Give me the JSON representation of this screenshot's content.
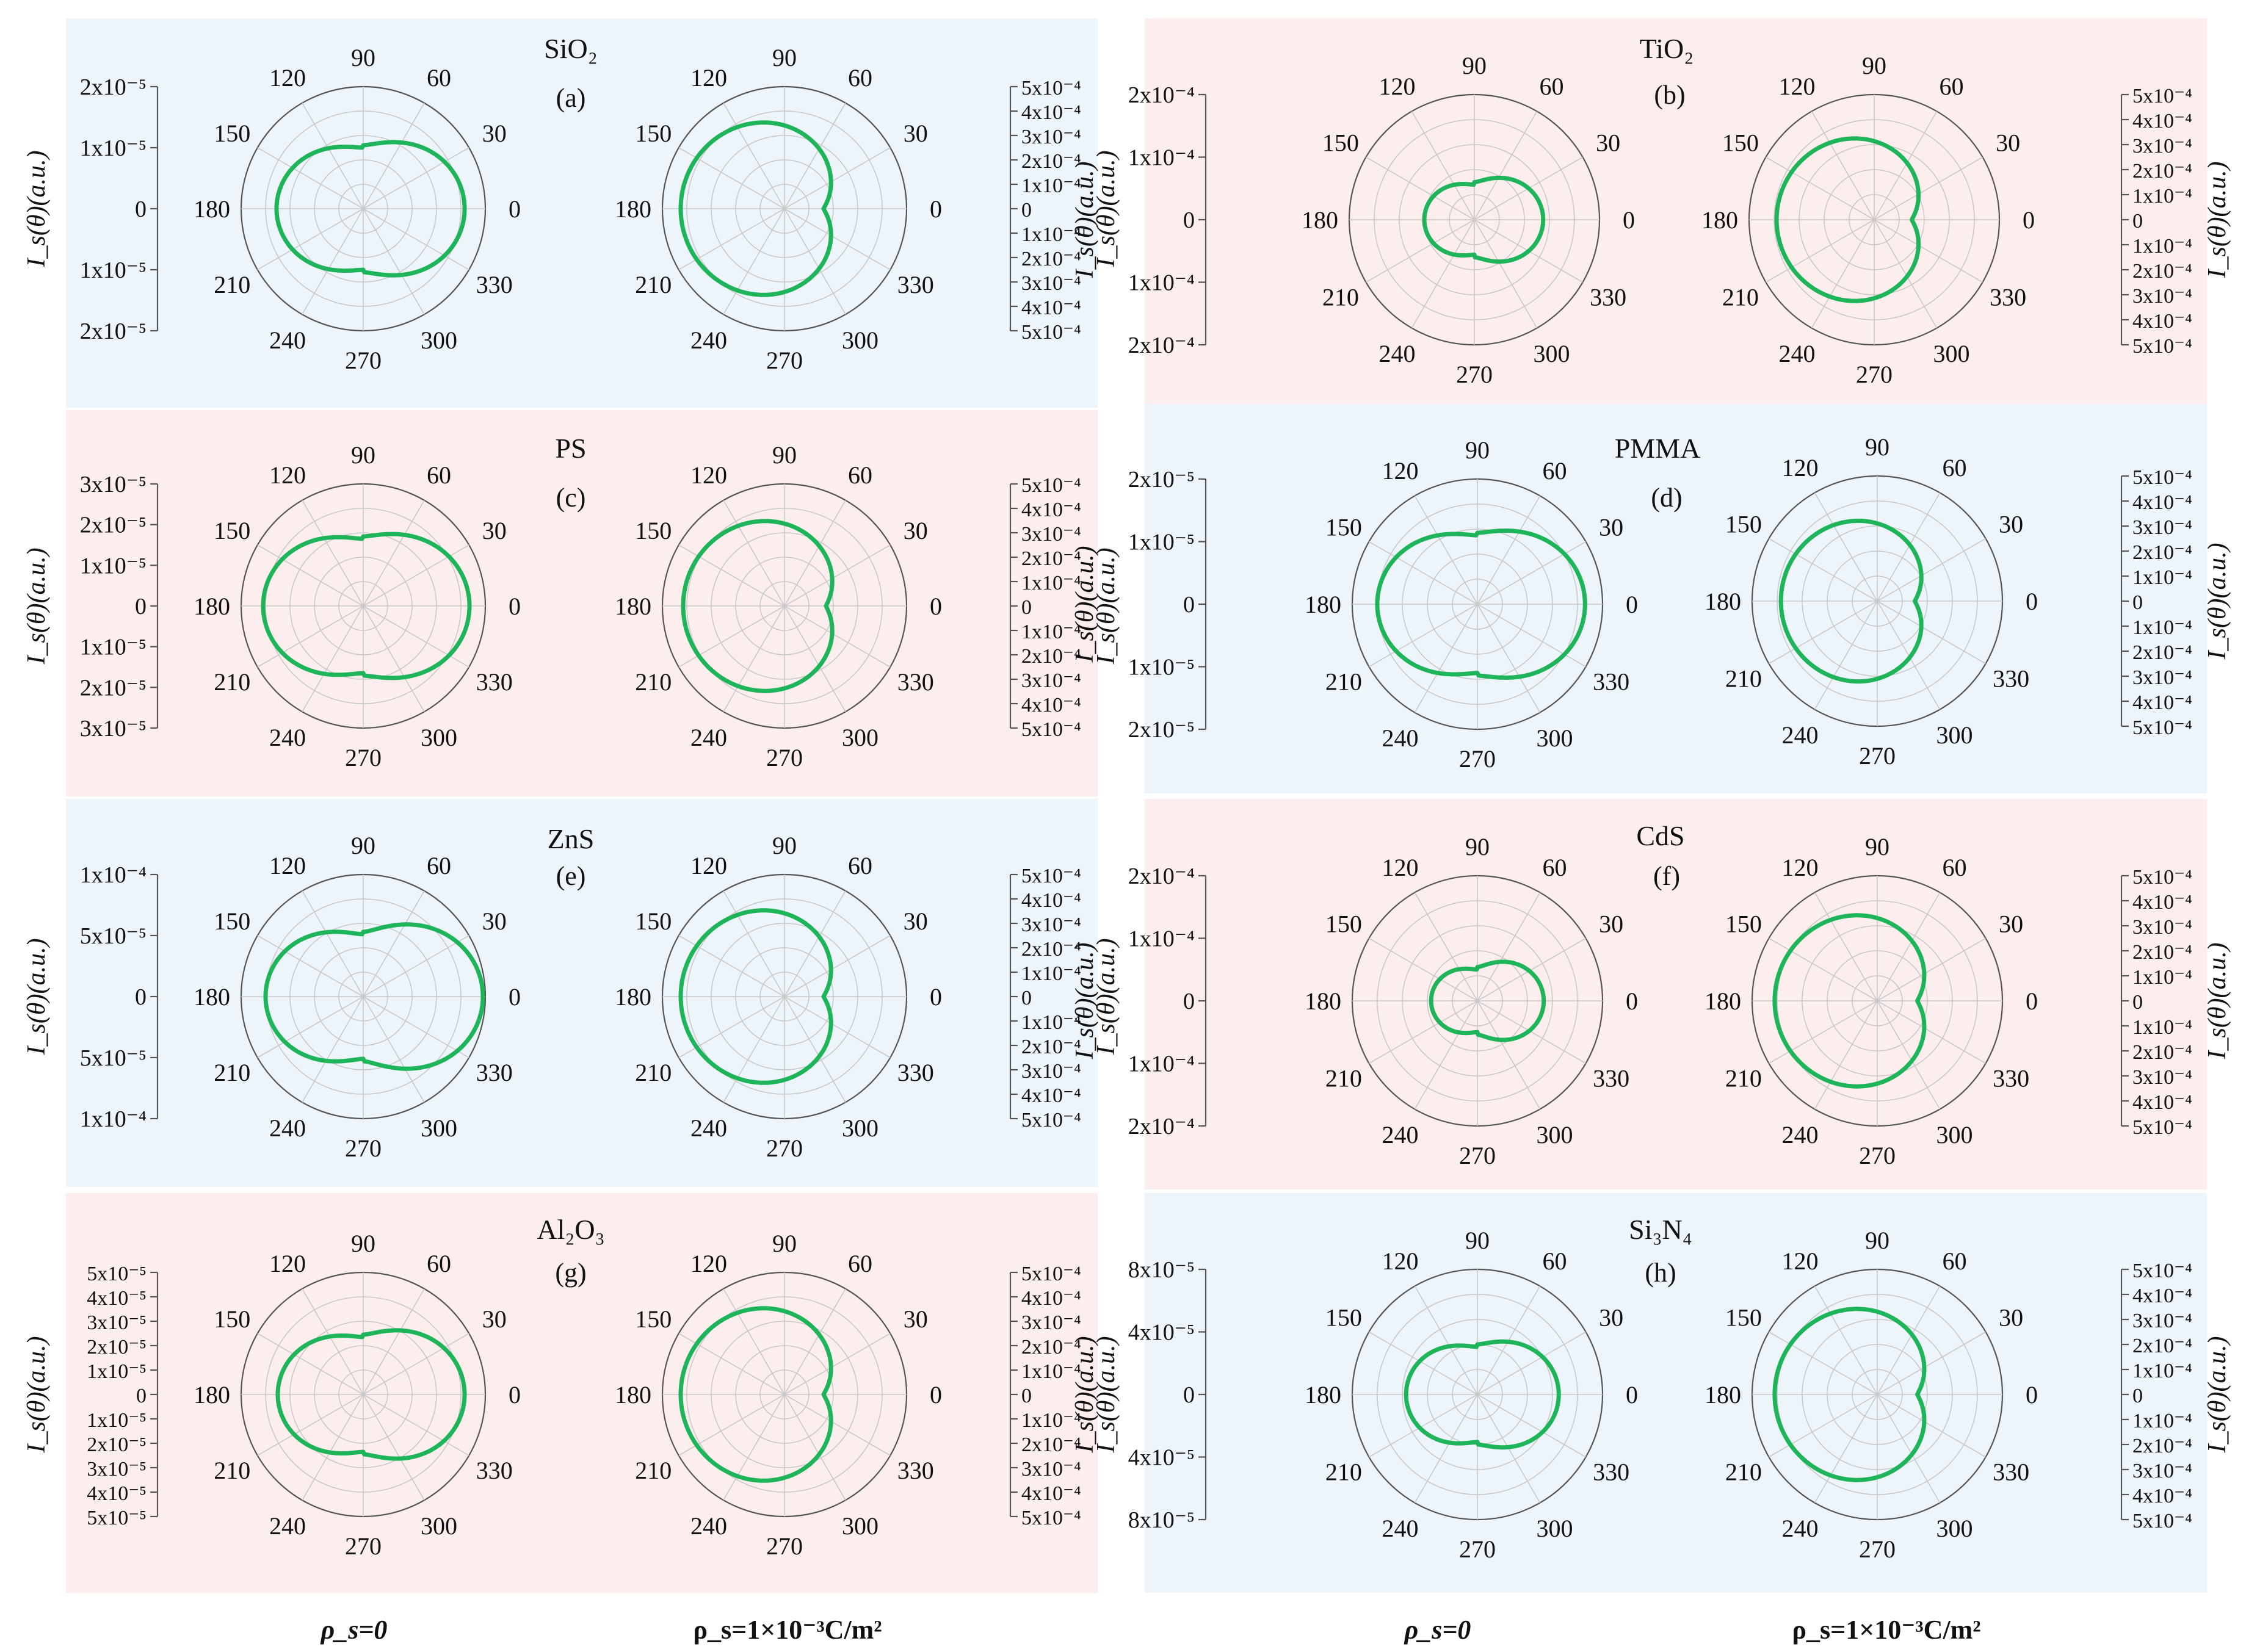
{
  "figure": {
    "column_labels": [
      "ρ_s=0",
      "ρ_s=1×10⁻³C/m²"
    ],
    "axis_label": "I_s(θ)(a.u.)"
  },
  "chart_data": [
    {
      "type": "polar",
      "panel": "(a)",
      "material": "SiO₂",
      "background": "#eef5fa",
      "angle_ticks_deg": [
        0,
        30,
        60,
        90,
        120,
        150,
        180,
        210,
        240,
        270,
        300,
        330
      ],
      "left_plot": {
        "surface_charge": "ρ_s=0",
        "radial_max": 2e-05,
        "axis_tick_labels": [
          "2x10⁻⁵",
          "1x10⁻⁵",
          "0",
          "1x10⁻⁵",
          "2x10⁻⁵"
        ],
        "shape": "dumbbell",
        "forward_radius_frac": 0.83,
        "backward_radius_frac": 0.71,
        "waist_frac": 0.47
      },
      "right_plot": {
        "surface_charge": "ρ_s=1×10⁻³C/m²",
        "radial_max": 0.0005,
        "axis_tick_labels": [
          "5x10⁻⁴",
          "4x10⁻⁴",
          "3x10⁻⁴",
          "2x10⁻⁴",
          "1x10⁻⁴",
          "0",
          "1x10⁻⁴",
          "2x10⁻⁴",
          "3x10⁻⁴",
          "4x10⁻⁴",
          "5x10⁻⁴"
        ],
        "shape": "backward",
        "forward_radius_frac": 0.32,
        "backward_radius_frac": 0.85
      }
    },
    {
      "type": "polar",
      "panel": "(b)",
      "material": "TiO₂",
      "background": "#fdeeee",
      "angle_ticks_deg": [
        0,
        30,
        60,
        90,
        120,
        150,
        180,
        210,
        240,
        270,
        300,
        330
      ],
      "left_plot": {
        "surface_charge": "ρ_s=0",
        "radial_max": 0.0002,
        "axis_tick_labels": [
          "2x10⁻⁴",
          "1x10⁻⁴",
          "0",
          "1x10⁻⁴",
          "2x10⁻⁴"
        ],
        "shape": "dumbbell",
        "forward_radius_frac": 0.55,
        "backward_radius_frac": 0.4,
        "waist_frac": 0.25
      },
      "right_plot": {
        "surface_charge": "ρ_s=1×10⁻³C/m²",
        "radial_max": 0.0005,
        "axis_tick_labels": [
          "5x10⁻⁴",
          "4x10⁻⁴",
          "3x10⁻⁴",
          "2x10⁻⁴",
          "1x10⁻⁴",
          "0",
          "1x10⁻⁴",
          "2x10⁻⁴",
          "3x10⁻⁴",
          "4x10⁻⁴",
          "5x10⁻⁴"
        ],
        "shape": "backward",
        "forward_radius_frac": 0.3,
        "backward_radius_frac": 0.78
      }
    },
    {
      "type": "polar",
      "panel": "(c)",
      "material": "PS",
      "background": "#fdeeee",
      "angle_ticks_deg": [
        0,
        30,
        60,
        90,
        120,
        150,
        180,
        210,
        240,
        270,
        300,
        330
      ],
      "left_plot": {
        "surface_charge": "ρ_s=0",
        "radial_max": 3e-05,
        "axis_tick_labels": [
          "3x10⁻⁵",
          "2x10⁻⁵",
          "1x10⁻⁵",
          "0",
          "1x10⁻⁵",
          "2x10⁻⁵",
          "3x10⁻⁵"
        ],
        "shape": "dumbbell",
        "forward_radius_frac": 0.87,
        "backward_radius_frac": 0.82,
        "waist_frac": 0.52
      },
      "right_plot": {
        "surface_charge": "ρ_s=1×10⁻³C/m²",
        "radial_max": 0.0005,
        "axis_tick_labels": [
          "5x10⁻⁴",
          "4x10⁻⁴",
          "3x10⁻⁴",
          "2x10⁻⁴",
          "1x10⁻⁴",
          "0",
          "1x10⁻⁴",
          "2x10⁻⁴",
          "3x10⁻⁴",
          "4x10⁻⁴",
          "5x10⁻⁴"
        ],
        "shape": "backward",
        "forward_radius_frac": 0.34,
        "backward_radius_frac": 0.83
      }
    },
    {
      "type": "polar",
      "panel": "(d)",
      "material": "PMMA",
      "background": "#eef5fa",
      "angle_ticks_deg": [
        0,
        30,
        60,
        90,
        120,
        150,
        180,
        210,
        240,
        270,
        300,
        330
      ],
      "left_plot": {
        "surface_charge": "ρ_s=0",
        "radial_max": 2e-05,
        "axis_tick_labels": [
          "2x10⁻⁵",
          "1x10⁻⁵",
          "0",
          "1x10⁻⁵",
          "2x10⁻⁵"
        ],
        "shape": "dumbbell",
        "forward_radius_frac": 0.86,
        "backward_radius_frac": 0.8,
        "waist_frac": 0.52
      },
      "right_plot": {
        "surface_charge": "ρ_s=1×10⁻³C/m²",
        "radial_max": 0.0005,
        "axis_tick_labels": [
          "5x10⁻⁴",
          "4x10⁻⁴",
          "3x10⁻⁴",
          "2x10⁻⁴",
          "1x10⁻⁴",
          "0",
          "1x10⁻⁴",
          "2x10⁻⁴",
          "3x10⁻⁴",
          "4x10⁻⁴",
          "5x10⁻⁴"
        ],
        "shape": "backward",
        "forward_radius_frac": 0.3,
        "backward_radius_frac": 0.77
      }
    },
    {
      "type": "polar",
      "panel": "(e)",
      "material": "ZnS",
      "background": "#eef5fa",
      "angle_ticks_deg": [
        0,
        30,
        60,
        90,
        120,
        150,
        180,
        210,
        240,
        270,
        300,
        330
      ],
      "left_plot": {
        "surface_charge": "ρ_s=0",
        "radial_max": 0.0001,
        "axis_tick_labels": [
          "1x10⁻⁴",
          "5x10⁻⁵",
          "0",
          "5x10⁻⁵",
          "1x10⁻⁴"
        ],
        "shape": "dumbbell",
        "forward_radius_frac": 0.98,
        "backward_radius_frac": 0.8,
        "waist_frac": 0.48
      },
      "right_plot": {
        "surface_charge": "ρ_s=1×10⁻³C/m²",
        "radial_max": 0.0005,
        "axis_tick_labels": [
          "5x10⁻⁴",
          "4x10⁻⁴",
          "3x10⁻⁴",
          "2x10⁻⁴",
          "1x10⁻⁴",
          "0",
          "1x10⁻⁴",
          "2x10⁻⁴",
          "3x10⁻⁴",
          "4x10⁻⁴",
          "5x10⁻⁴"
        ],
        "shape": "backward",
        "forward_radius_frac": 0.32,
        "backward_radius_frac": 0.85
      }
    },
    {
      "type": "polar",
      "panel": "(f)",
      "material": "CdS",
      "background": "#fdeeee",
      "angle_ticks_deg": [
        0,
        30,
        60,
        90,
        120,
        150,
        180,
        210,
        240,
        270,
        300,
        330
      ],
      "left_plot": {
        "surface_charge": "ρ_s=0",
        "radial_max": 0.0002,
        "axis_tick_labels": [
          "2x10⁻⁴",
          "1x10⁻⁴",
          "0",
          "1x10⁻⁴",
          "2x10⁻⁴"
        ],
        "shape": "dumbbell",
        "forward_radius_frac": 0.53,
        "backward_radius_frac": 0.37,
        "waist_frac": 0.22
      },
      "right_plot": {
        "surface_charge": "ρ_s=1×10⁻³C/m²",
        "radial_max": 0.0005,
        "axis_tick_labels": [
          "5x10⁻⁴",
          "4x10⁻⁴",
          "3x10⁻⁴",
          "2x10⁻⁴",
          "1x10⁻⁴",
          "0",
          "1x10⁻⁴",
          "2x10⁻⁴",
          "3x10⁻⁴",
          "4x10⁻⁴",
          "5x10⁻⁴"
        ],
        "shape": "backward",
        "forward_radius_frac": 0.32,
        "backward_radius_frac": 0.82
      }
    },
    {
      "type": "polar",
      "panel": "(g)",
      "material": "Al₂O₃",
      "background": "#fdeeee",
      "angle_ticks_deg": [
        0,
        30,
        60,
        90,
        120,
        150,
        180,
        210,
        240,
        270,
        300,
        330
      ],
      "left_plot": {
        "surface_charge": "ρ_s=0",
        "radial_max": 5e-05,
        "axis_tick_labels": [
          "5x10⁻⁵",
          "4x10⁻⁵",
          "3x10⁻⁵",
          "2x10⁻⁵",
          "1x10⁻⁵",
          "0",
          "1x10⁻⁵",
          "2x10⁻⁵",
          "3x10⁻⁵",
          "4x10⁻⁵",
          "5x10⁻⁵"
        ],
        "shape": "dumbbell",
        "forward_radius_frac": 0.83,
        "backward_radius_frac": 0.7,
        "waist_frac": 0.44
      },
      "right_plot": {
        "surface_charge": "ρ_s=1×10⁻³C/m²",
        "radial_max": 0.0005,
        "axis_tick_labels": [
          "5x10⁻⁴",
          "4x10⁻⁴",
          "3x10⁻⁴",
          "2x10⁻⁴",
          "1x10⁻⁴",
          "0",
          "1x10⁻⁴",
          "2x10⁻⁴",
          "3x10⁻⁴",
          "4x10⁻⁴",
          "5x10⁻⁴"
        ],
        "shape": "backward",
        "forward_radius_frac": 0.32,
        "backward_radius_frac": 0.85
      }
    },
    {
      "type": "polar",
      "panel": "(h)",
      "material": "Si₃N₄",
      "background": "#eef5fa",
      "angle_ticks_deg": [
        0,
        30,
        60,
        90,
        120,
        150,
        180,
        210,
        240,
        270,
        300,
        330
      ],
      "left_plot": {
        "surface_charge": "ρ_s=0",
        "radial_max": 8e-05,
        "axis_tick_labels": [
          "8x10⁻⁵",
          "4x10⁻⁵",
          "0",
          "4x10⁻⁵",
          "8x10⁻⁵"
        ],
        "shape": "dumbbell",
        "forward_radius_frac": 0.65,
        "backward_radius_frac": 0.57,
        "waist_frac": 0.35
      },
      "right_plot": {
        "surface_charge": "ρ_s=1×10⁻³C/m²",
        "radial_max": 0.0005,
        "axis_tick_labels": [
          "5x10⁻⁴",
          "4x10⁻⁴",
          "3x10⁻⁴",
          "2x10⁻⁴",
          "1x10⁻⁴",
          "0",
          "1x10⁻⁴",
          "2x10⁻⁴",
          "3x10⁻⁴",
          "4x10⁻⁴",
          "5x10⁻⁴"
        ],
        "shape": "backward",
        "forward_radius_frac": 0.32,
        "backward_radius_frac": 0.82
      }
    }
  ]
}
